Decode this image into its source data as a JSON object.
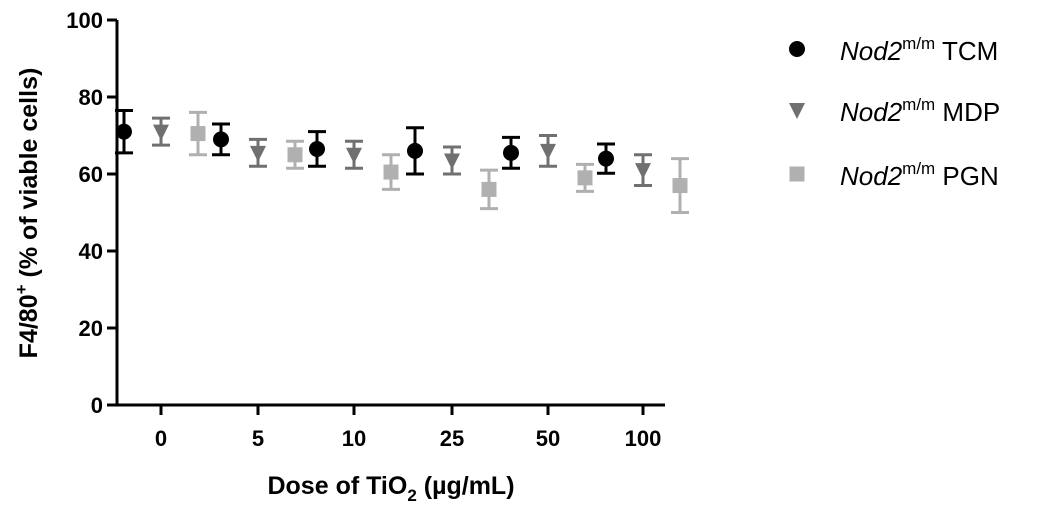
{
  "chart_data": {
    "type": "scatter",
    "title": "",
    "xlabel_parts": {
      "main": "Dose of TiO",
      "sub": "2",
      "tail": " (µg/mL)"
    },
    "ylabel_parts": {
      "main": "F4/80",
      "sup": "+",
      "tail": " (% of viable cells)"
    },
    "categories": [
      "0",
      "5",
      "10",
      "25",
      "50",
      "100"
    ],
    "ylim": [
      0,
      100
    ],
    "yticks": [
      "0",
      "20",
      "40",
      "60",
      "80",
      "100"
    ],
    "grid": false,
    "legend_position": "right",
    "series": [
      {
        "name_italic": "Nod2",
        "name_sup": "m/m",
        "name_tail": " TCM",
        "marker": "circle",
        "color": "#000000",
        "values": [
          71,
          69,
          66.5,
          66,
          65.5,
          64
        ],
        "err": [
          5.5,
          4,
          4.5,
          6,
          4,
          3.8
        ]
      },
      {
        "name_italic": "Nod2",
        "name_sup": "m/m",
        "name_tail": " MDP",
        "marker": "triangle-down",
        "color": "#707070",
        "values": [
          71,
          65.5,
          65,
          63.5,
          66,
          61
        ],
        "err": [
          3.5,
          3.5,
          3.5,
          3.5,
          4,
          4
        ]
      },
      {
        "name_italic": "Nod2",
        "name_sup": "m/m",
        "name_tail": " PGN",
        "marker": "square",
        "color": "#b0b0b0",
        "values": [
          70.5,
          65,
          60.5,
          56,
          59,
          57
        ],
        "err": [
          5.5,
          3.5,
          4.5,
          5,
          3.5,
          7
        ]
      }
    ]
  }
}
